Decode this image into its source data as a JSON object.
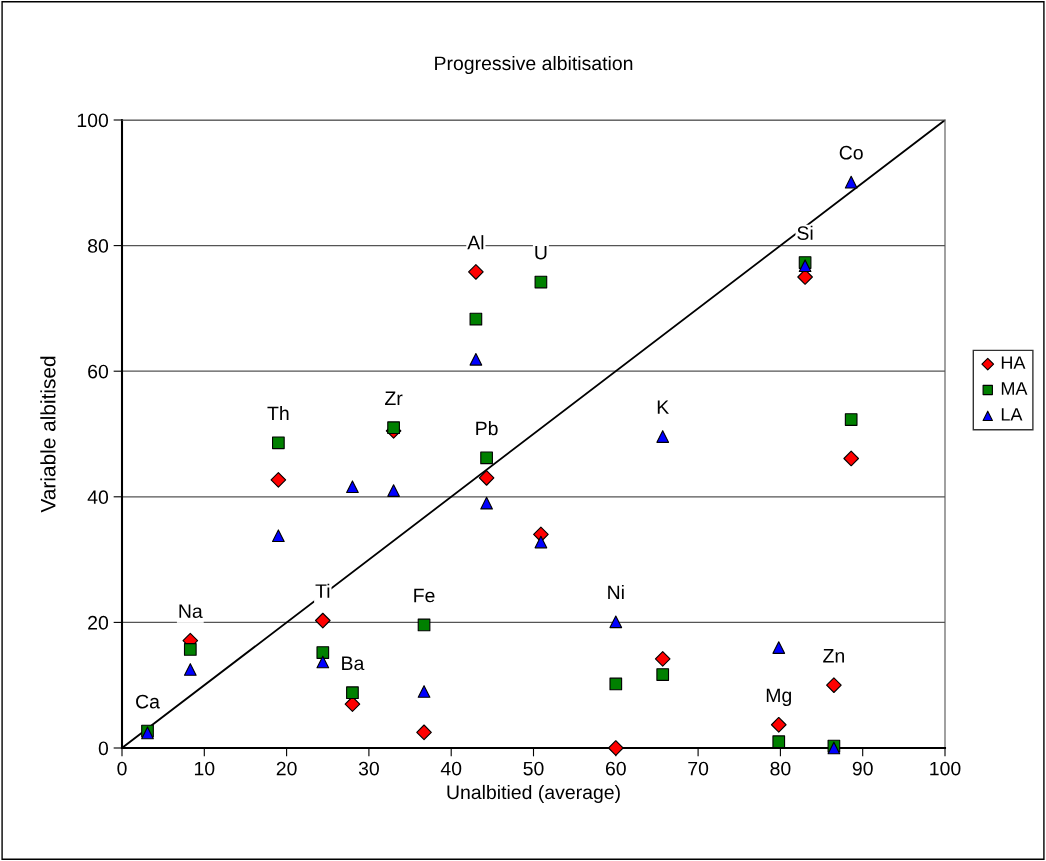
{
  "chart_data": {
    "type": "scatter",
    "title": "Progressive albitisation",
    "xlabel": "Unalbitied (average)",
    "ylabel": "Variable albitised",
    "x": [
      3.1,
      8.3,
      19,
      24.4,
      28,
      33,
      36.7,
      43,
      44.3,
      50.9,
      60,
      65.7,
      79.8,
      83,
      86.5,
      88.6
    ],
    "series": [
      {
        "name": "HA",
        "color": "#ff0000",
        "marker": "diamond",
        "values": [
          null,
          17.1,
          42.7,
          20.3,
          7.0,
          50.5,
          2.5,
          75.8,
          43.0,
          34.0,
          0,
          14.2,
          3.7,
          75.0,
          10.0,
          46.1
        ]
      },
      {
        "name": "MA",
        "color": "#008000",
        "marker": "square",
        "values": [
          2.7,
          15.7,
          48.6,
          15.2,
          8.8,
          51.0,
          19.6,
          68.3,
          46.2,
          74.2,
          10.2,
          11.7,
          1.0,
          77.3,
          0.3,
          52.3
        ]
      },
      {
        "name": "LA",
        "color": "#0000ff",
        "marker": "triangle",
        "values": [
          2.4,
          12.5,
          33.8,
          13.7,
          41.6,
          41.0,
          9.0,
          61.9,
          39.0,
          32.8,
          20.1,
          49.6,
          16.0,
          76.8,
          0,
          90.1
        ]
      },
      {
        "type": "line",
        "color": "#000000",
        "x": [
          0,
          100
        ],
        "values": [
          0,
          100
        ]
      }
    ],
    "annotations": [
      {
        "text": "Ca",
        "x": 3.1,
        "y": 2.7
      },
      {
        "text": "Na",
        "x": 8.3,
        "y": 17.1
      },
      {
        "text": "Th",
        "x": 19,
        "y": 48.6
      },
      {
        "text": "Ti",
        "x": 24.4,
        "y": 20.3
      },
      {
        "text": "Ba",
        "x": 28,
        "y": 8.8
      },
      {
        "text": "Zr",
        "x": 33,
        "y": 51.0
      },
      {
        "text": "Fe",
        "x": 36.7,
        "y": 19.6
      },
      {
        "text": "Al",
        "x": 43,
        "y": 75.8
      },
      {
        "text": "Pb",
        "x": 44.3,
        "y": 46.2
      },
      {
        "text": "U",
        "x": 50.9,
        "y": 74.2
      },
      {
        "text": "Ni",
        "x": 60,
        "y": 20.1
      },
      {
        "text": "K",
        "x": 65.7,
        "y": 49.6
      },
      {
        "text": "Mg",
        "x": 79.8,
        "y": 3.7
      },
      {
        "text": "Si",
        "x": 83,
        "y": 77.3
      },
      {
        "text": "Zn",
        "x": 86.5,
        "y": 10.0
      },
      {
        "text": "Co",
        "x": 88.6,
        "y": 90.1
      }
    ],
    "xlim": [
      0,
      100
    ],
    "xticks": [
      0,
      10,
      20,
      30,
      40,
      50,
      60,
      70,
      80,
      90,
      100
    ],
    "ylim": [
      0,
      100
    ],
    "yticks": [
      0,
      20,
      40,
      60,
      80,
      100
    ],
    "grid": "y",
    "legend": "right"
  }
}
